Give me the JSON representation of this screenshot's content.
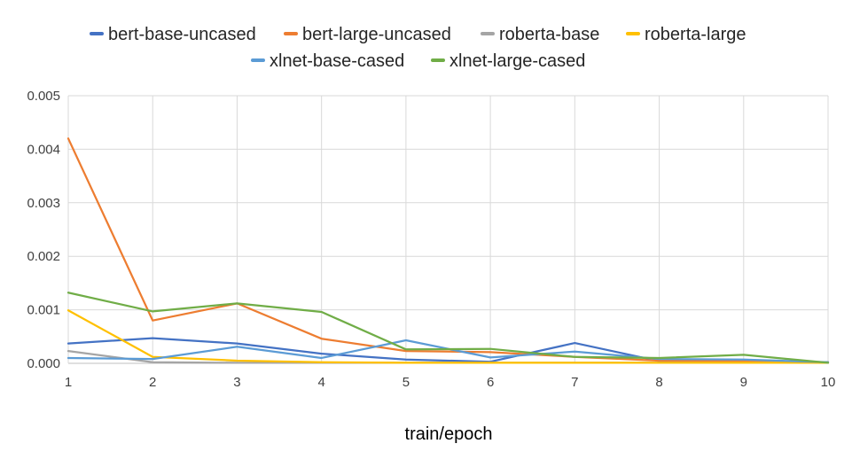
{
  "chart_data": {
    "type": "line",
    "title": "",
    "xlabel": "train/epoch",
    "ylabel": "",
    "x": [
      1,
      2,
      3,
      4,
      5,
      6,
      7,
      8,
      9,
      10
    ],
    "x_tick_labels": [
      "1",
      "2",
      "3",
      "4",
      "5",
      "6",
      "7",
      "8",
      "9",
      "10"
    ],
    "ylim": [
      0,
      0.005
    ],
    "y_tick_labels": [
      "0.000",
      "0.001",
      "0.002",
      "0.003",
      "0.004",
      "0.005"
    ],
    "grid": "vertical and horizontal",
    "legend_position": "top",
    "series": [
      {
        "name": "bert-base-uncased",
        "color": "#4472C4",
        "values": [
          0.00037,
          0.00047,
          0.00037,
          0.00018,
          7e-05,
          3e-05,
          0.00038,
          4e-05,
          4e-05,
          2e-05
        ]
      },
      {
        "name": "bert-large-uncased",
        "color": "#ED7D31",
        "values": [
          0.0042,
          0.0008,
          0.00112,
          0.00046,
          0.00023,
          0.00021,
          0.00012,
          5e-05,
          4e-05,
          2e-05
        ]
      },
      {
        "name": "roberta-base",
        "color": "#A5A5A5",
        "values": [
          0.00023,
          2e-05,
          1e-05,
          1e-05,
          1e-05,
          1e-05,
          1e-05,
          1e-05,
          1e-05,
          1e-05
        ]
      },
      {
        "name": "roberta-large",
        "color": "#FFC000",
        "values": [
          0.00099,
          0.00012,
          5e-05,
          2e-05,
          1e-05,
          1e-05,
          1e-05,
          1e-05,
          1e-05,
          1e-05
        ]
      },
      {
        "name": "xlnet-base-cased",
        "color": "#5B9BD5",
        "values": [
          0.0001,
          8e-05,
          0.00031,
          0.0001,
          0.00043,
          0.00011,
          0.00022,
          8e-05,
          7e-05,
          2e-05
        ]
      },
      {
        "name": "xlnet-large-cased",
        "color": "#70AD47",
        "values": [
          0.00132,
          0.00097,
          0.00112,
          0.00096,
          0.00026,
          0.00027,
          0.00012,
          0.0001,
          0.00016,
          1e-05
        ]
      }
    ]
  }
}
